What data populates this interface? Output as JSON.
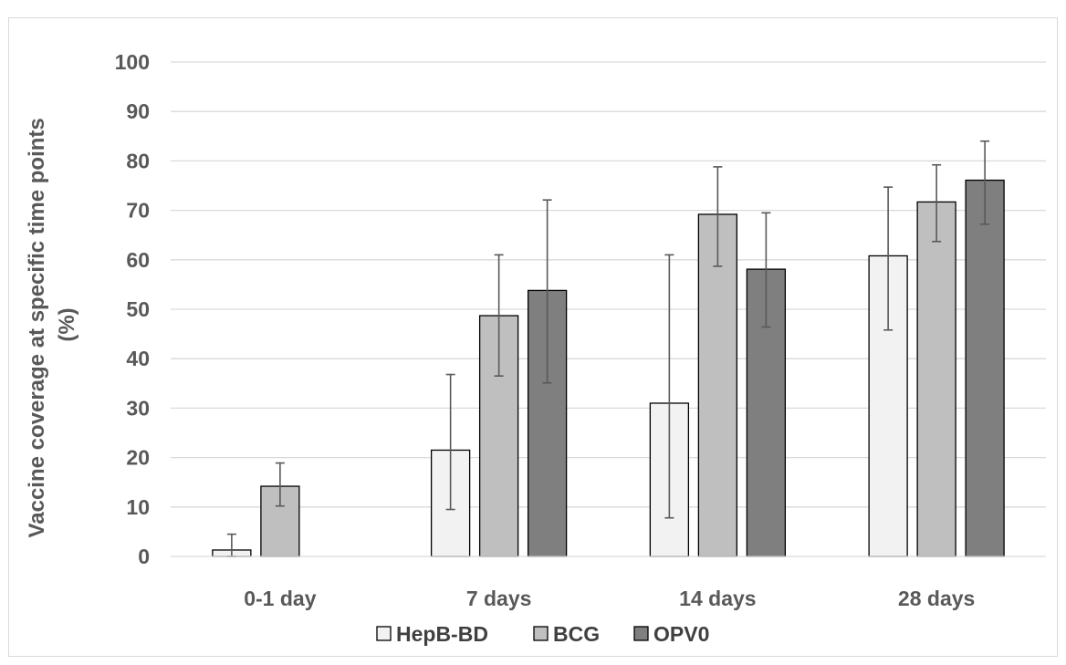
{
  "chart_data": {
    "type": "bar",
    "categories": [
      "0-1 day",
      "7 days",
      "14 days",
      "28 days"
    ],
    "ylabel": "Vaccine coverage at specific time points (%)",
    "ylabel_lines": [
      "Vaccine coverage at specific time points",
      "(%)"
    ],
    "ylim": [
      0,
      100
    ],
    "yticks": [
      "0",
      "10",
      "20",
      "30",
      "40",
      "50",
      "60",
      "70",
      "80",
      "90",
      "100"
    ],
    "grid": true,
    "legend_position": "bottom",
    "series": [
      {
        "name": "HepB-BD",
        "color": "#f2f2f2",
        "values": [
          1.3,
          21.5,
          31,
          60.8
        ],
        "err_low": [
          0,
          9.5,
          7.8,
          45.8
        ],
        "err_high": [
          4.5,
          36.8,
          61,
          74.7
        ]
      },
      {
        "name": "BCG",
        "color": "#bfbfbf",
        "values": [
          14.2,
          48.7,
          69.2,
          71.7
        ],
        "err_low": [
          10.2,
          36.5,
          58.7,
          63.7
        ],
        "err_high": [
          18.9,
          61,
          78.8,
          79.2
        ]
      },
      {
        "name": "OPV0",
        "color": "#7f7f7f",
        "values": [
          null,
          53.8,
          58.1,
          76.1
        ],
        "err_low": [
          null,
          35.1,
          46.4,
          67.2
        ],
        "err_high": [
          null,
          72.1,
          69.5,
          84
        ]
      }
    ]
  }
}
